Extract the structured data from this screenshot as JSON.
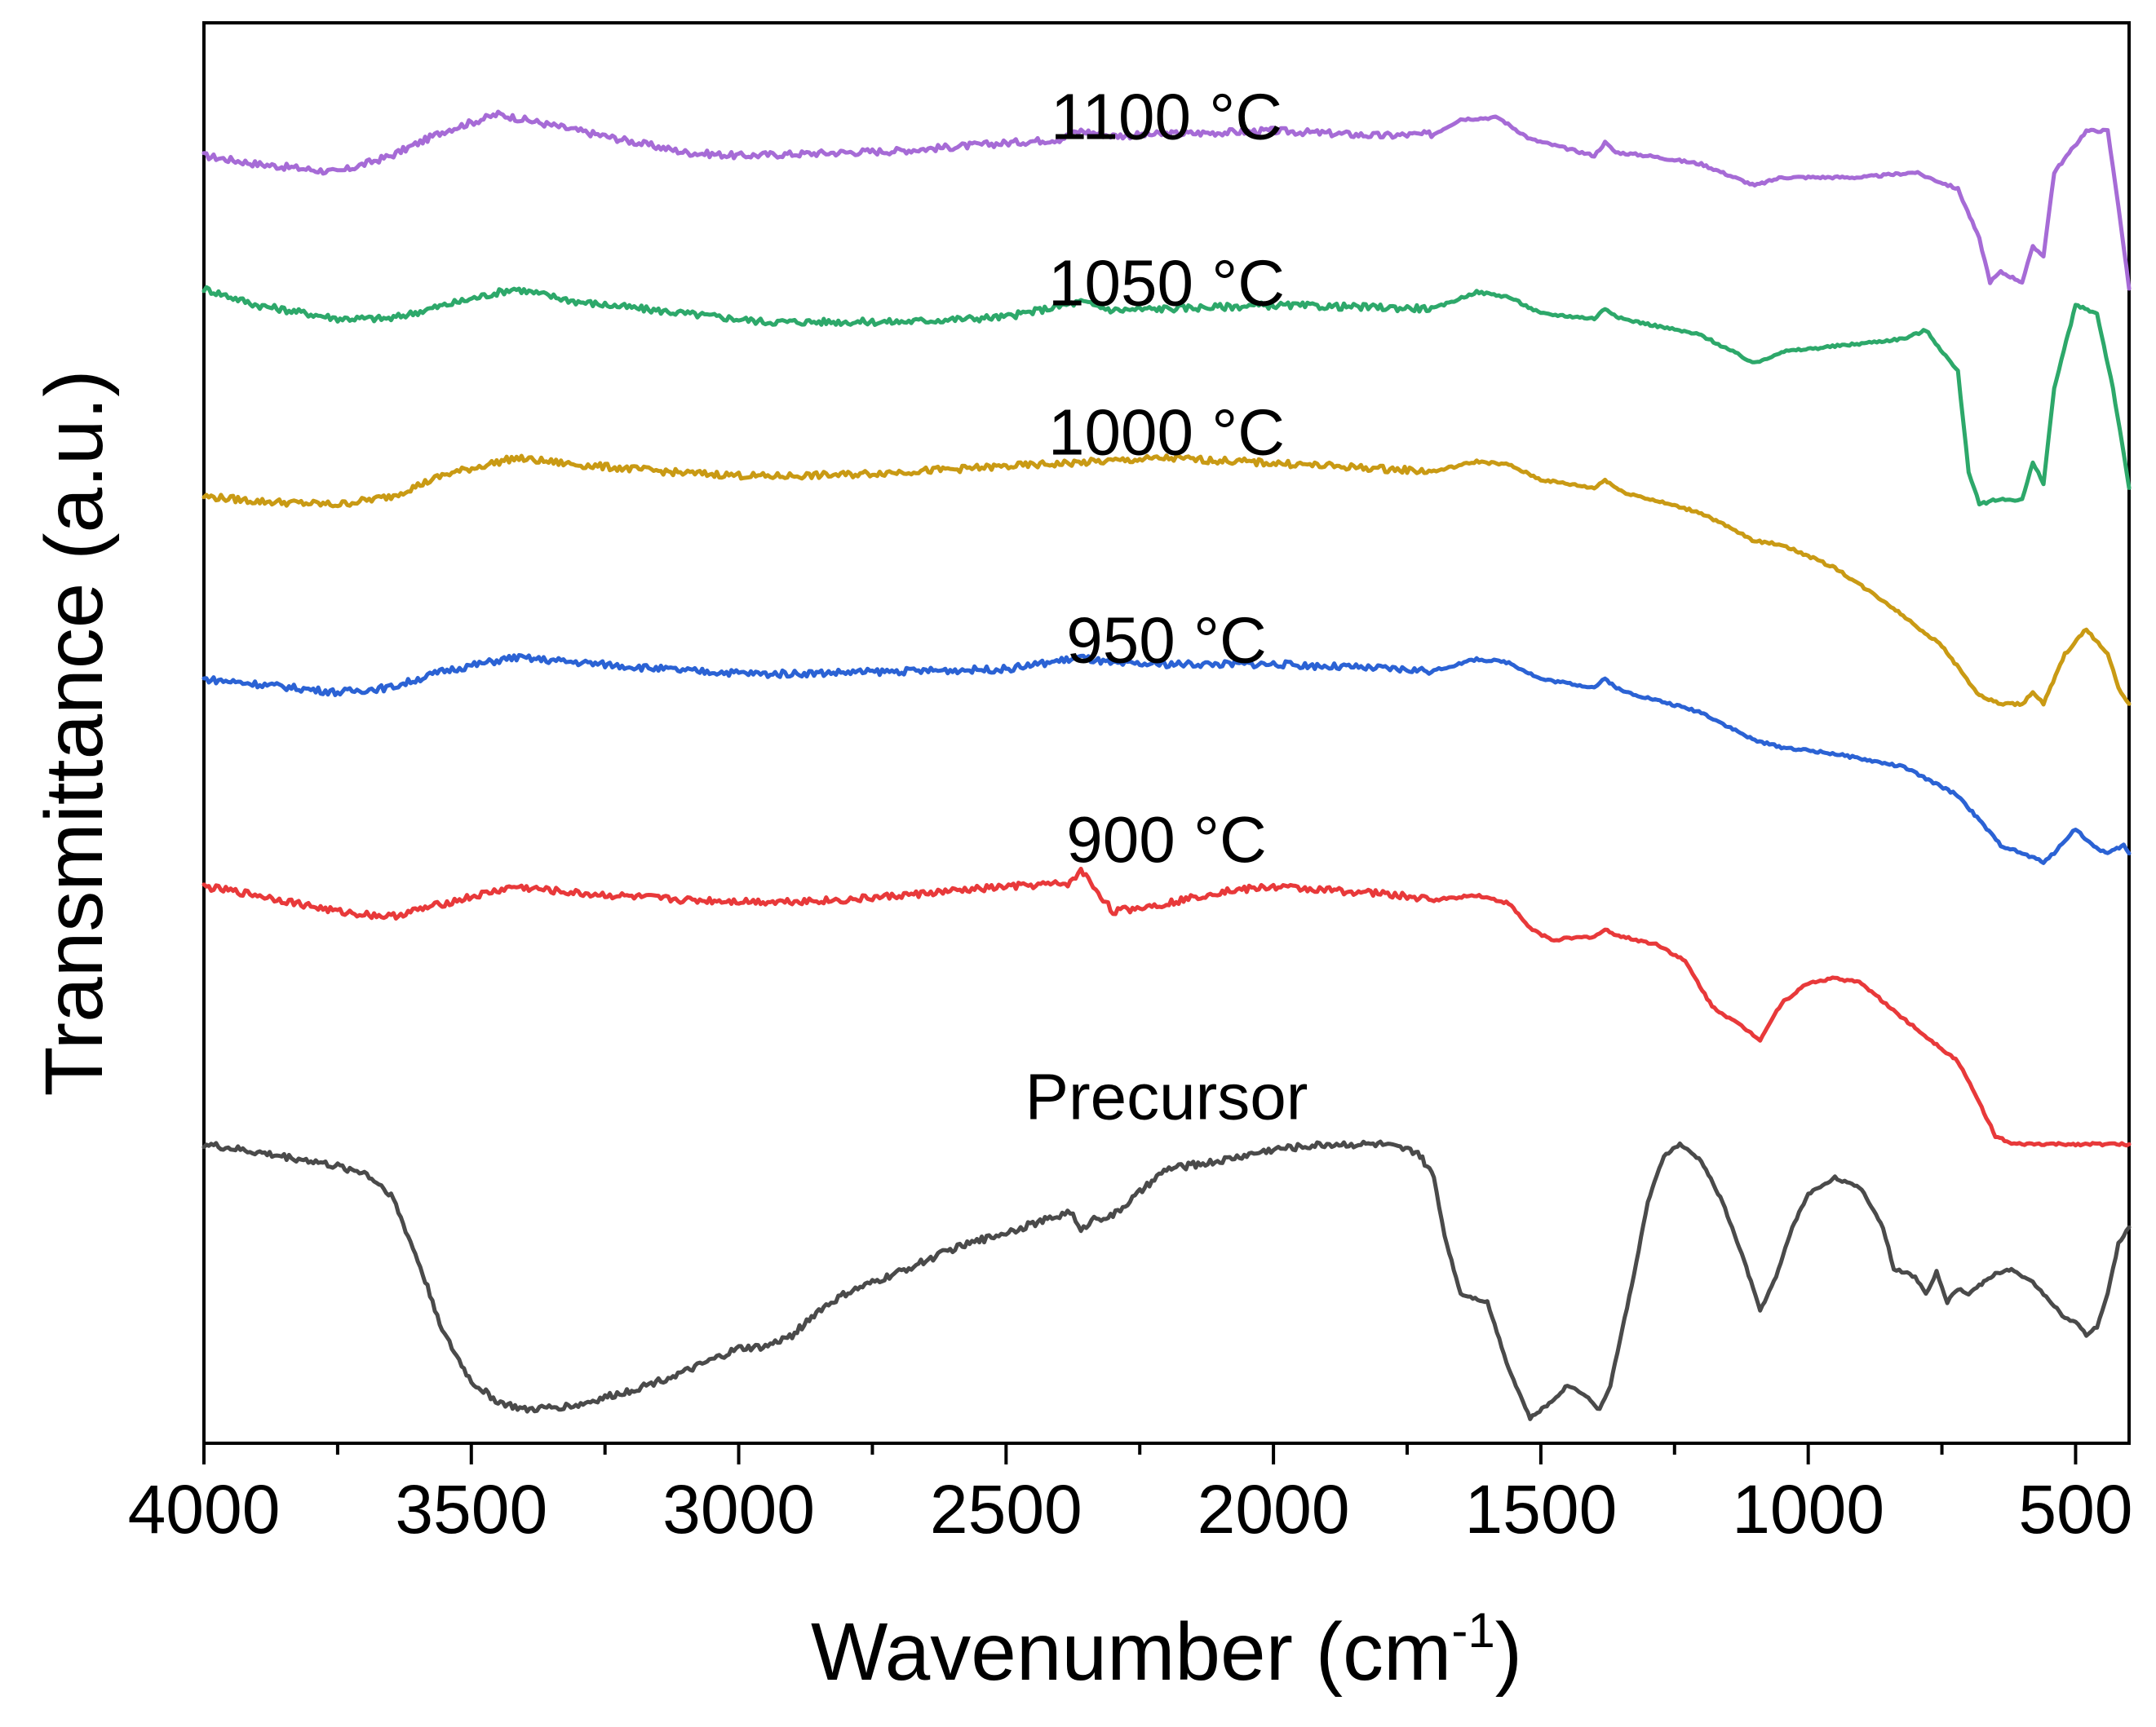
{
  "chart_data": {
    "type": "line",
    "title": "",
    "xlabel": "Wavenumber (cm",
    "xlabel_sup": "-1",
    "xlabel_close": ")",
    "ylabel": "Transmittance (a.u.)",
    "xlim": [
      4000,
      400
    ],
    "x_reversed": true,
    "y_tick_labels": false,
    "grid": false,
    "x_ticks": [
      {
        "value": 4000,
        "label": "4000"
      },
      {
        "value": 3500,
        "label": "3500"
      },
      {
        "value": 3000,
        "label": "3000"
      },
      {
        "value": 2500,
        "label": "2500"
      },
      {
        "value": 2000,
        "label": "2000"
      },
      {
        "value": 1500,
        "label": "1500"
      },
      {
        "value": 1000,
        "label": "1000"
      },
      {
        "value": 500,
        "label": "500"
      }
    ],
    "series": [
      {
        "name": "1100 °C",
        "label_num": "1100",
        "label_unit": "°C",
        "color": "#a66bd6",
        "label_x": 2200,
        "label_y": 5.0,
        "points": [
          [
            4000,
            4.9
          ],
          [
            3900,
            4.85
          ],
          [
            3750,
            4.8
          ],
          [
            3650,
            4.9
          ],
          [
            3550,
            5.05
          ],
          [
            3450,
            5.15
          ],
          [
            3300,
            5.05
          ],
          [
            3100,
            4.92
          ],
          [
            3000,
            4.9
          ],
          [
            2700,
            4.93
          ],
          [
            2400,
            5.0
          ],
          [
            2360,
            5.05
          ],
          [
            2300,
            5.02
          ],
          [
            2000,
            5.05
          ],
          [
            1800,
            5.02
          ],
          [
            1700,
            5.03
          ],
          [
            1650,
            5.12
          ],
          [
            1580,
            5.13
          ],
          [
            1520,
            5.0
          ],
          [
            1400,
            4.9
          ],
          [
            1380,
            4.98
          ],
          [
            1360,
            4.92
          ],
          [
            1300,
            4.9
          ],
          [
            1200,
            4.85
          ],
          [
            1100,
            4.72
          ],
          [
            1050,
            4.77
          ],
          [
            900,
            4.77
          ],
          [
            800,
            4.8
          ],
          [
            720,
            4.7
          ],
          [
            680,
            4.4
          ],
          [
            660,
            4.14
          ],
          [
            640,
            4.2
          ],
          [
            600,
            4.14
          ],
          [
            580,
            4.35
          ],
          [
            560,
            4.3
          ],
          [
            540,
            4.8
          ],
          [
            480,
            5.05
          ],
          [
            440,
            5.05
          ],
          [
            420,
            4.6
          ],
          [
            400,
            4.1
          ]
        ]
      },
      {
        "name": "1050 °C",
        "label_num": "1050",
        "label_unit": "°C",
        "color": "#2da86a",
        "label_x": 2200,
        "label_y": 4.0,
        "points": [
          [
            4000,
            4.1
          ],
          [
            3900,
            4.0
          ],
          [
            3750,
            3.92
          ],
          [
            3650,
            3.92
          ],
          [
            3550,
            4.0
          ],
          [
            3420,
            4.1
          ],
          [
            3300,
            4.02
          ],
          [
            3100,
            3.95
          ],
          [
            2950,
            3.9
          ],
          [
            2700,
            3.9
          ],
          [
            2500,
            3.93
          ],
          [
            2360,
            4.02
          ],
          [
            2300,
            3.97
          ],
          [
            2000,
            4.0
          ],
          [
            1700,
            3.98
          ],
          [
            1620,
            4.08
          ],
          [
            1560,
            4.05
          ],
          [
            1500,
            3.95
          ],
          [
            1400,
            3.92
          ],
          [
            1380,
            3.98
          ],
          [
            1350,
            3.92
          ],
          [
            1200,
            3.82
          ],
          [
            1100,
            3.65
          ],
          [
            1050,
            3.72
          ],
          [
            900,
            3.77
          ],
          [
            820,
            3.8
          ],
          [
            780,
            3.85
          ],
          [
            720,
            3.6
          ],
          [
            700,
            3.0
          ],
          [
            680,
            2.8
          ],
          [
            650,
            2.83
          ],
          [
            600,
            2.83
          ],
          [
            580,
            3.05
          ],
          [
            560,
            2.93
          ],
          [
            540,
            3.5
          ],
          [
            500,
            4.0
          ],
          [
            460,
            3.95
          ],
          [
            430,
            3.5
          ],
          [
            400,
            2.9
          ]
        ]
      },
      {
        "name": "1000 °C",
        "label_num": "1000",
        "label_unit": "°C",
        "color": "#c99a14",
        "label_x": 2200,
        "label_y": 3.1,
        "points": [
          [
            4000,
            2.85
          ],
          [
            3900,
            2.82
          ],
          [
            3750,
            2.8
          ],
          [
            3650,
            2.85
          ],
          [
            3550,
            2.98
          ],
          [
            3420,
            3.08
          ],
          [
            3300,
            3.04
          ],
          [
            3100,
            2.99
          ],
          [
            2950,
            2.97
          ],
          [
            2800,
            2.98
          ],
          [
            2500,
            3.03
          ],
          [
            2200,
            3.08
          ],
          [
            2000,
            3.05
          ],
          [
            1700,
            3.0
          ],
          [
            1620,
            3.06
          ],
          [
            1560,
            3.04
          ],
          [
            1500,
            2.95
          ],
          [
            1400,
            2.9
          ],
          [
            1380,
            2.95
          ],
          [
            1350,
            2.88
          ],
          [
            1200,
            2.75
          ],
          [
            1100,
            2.58
          ],
          [
            1050,
            2.56
          ],
          [
            950,
            2.42
          ],
          [
            850,
            2.2
          ],
          [
            750,
            1.95
          ],
          [
            680,
            1.65
          ],
          [
            640,
            1.6
          ],
          [
            600,
            1.6
          ],
          [
            580,
            1.67
          ],
          [
            560,
            1.6
          ],
          [
            520,
            1.9
          ],
          [
            480,
            2.05
          ],
          [
            440,
            1.9
          ],
          [
            420,
            1.7
          ],
          [
            400,
            1.6
          ]
        ]
      },
      {
        "name": "950 °C",
        "label_num": "950",
        "label_unit": "°C",
        "color": "#2b62d4",
        "label_x": 2200,
        "label_y": 1.85,
        "points": [
          [
            4000,
            1.75
          ],
          [
            3900,
            1.72
          ],
          [
            3750,
            1.67
          ],
          [
            3650,
            1.7
          ],
          [
            3550,
            1.8
          ],
          [
            3420,
            1.88
          ],
          [
            3300,
            1.85
          ],
          [
            3100,
            1.8
          ],
          [
            2950,
            1.78
          ],
          [
            2800,
            1.79
          ],
          [
            2500,
            1.81
          ],
          [
            2360,
            1.88
          ],
          [
            2300,
            1.84
          ],
          [
            2000,
            1.84
          ],
          [
            1700,
            1.8
          ],
          [
            1620,
            1.87
          ],
          [
            1560,
            1.85
          ],
          [
            1500,
            1.75
          ],
          [
            1400,
            1.7
          ],
          [
            1380,
            1.75
          ],
          [
            1350,
            1.68
          ],
          [
            1200,
            1.55
          ],
          [
            1100,
            1.38
          ],
          [
            1050,
            1.34
          ],
          [
            950,
            1.3
          ],
          [
            820,
            1.22
          ],
          [
            780,
            1.15
          ],
          [
            720,
            1.05
          ],
          [
            680,
            0.9
          ],
          [
            640,
            0.75
          ],
          [
            600,
            0.7
          ],
          [
            560,
            0.65
          ],
          [
            540,
            0.7
          ],
          [
            520,
            0.78
          ],
          [
            500,
            0.85
          ],
          [
            470,
            0.75
          ],
          [
            440,
            0.7
          ],
          [
            410,
            0.75
          ],
          [
            400,
            0.7
          ]
        ]
      },
      {
        "name": "900 °C",
        "label_num": "900",
        "label_unit": "°C",
        "color": "#e8393a",
        "label_x": 2200,
        "label_y": 0.65,
        "points": [
          [
            4000,
            0.5
          ],
          [
            3900,
            0.45
          ],
          [
            3750,
            0.35
          ],
          [
            3650,
            0.32
          ],
          [
            3550,
            0.4
          ],
          [
            3420,
            0.5
          ],
          [
            3300,
            0.46
          ],
          [
            3100,
            0.42
          ],
          [
            2950,
            0.41
          ],
          [
            2800,
            0.42
          ],
          [
            2500,
            0.5
          ],
          [
            2380,
            0.52
          ],
          [
            2360,
            0.6
          ],
          [
            2300,
            0.35
          ],
          [
            2200,
            0.4
          ],
          [
            2100,
            0.47
          ],
          [
            2000,
            0.5
          ],
          [
            1800,
            0.46
          ],
          [
            1700,
            0.42
          ],
          [
            1620,
            0.45
          ],
          [
            1560,
            0.4
          ],
          [
            1520,
            0.25
          ],
          [
            1480,
            0.18
          ],
          [
            1400,
            0.2
          ],
          [
            1380,
            0.24
          ],
          [
            1350,
            0.2
          ],
          [
            1280,
            0.15
          ],
          [
            1230,
            0.05
          ],
          [
            1180,
            -0.22
          ],
          [
            1120,
            -0.35
          ],
          [
            1090,
            -0.42
          ],
          [
            1050,
            -0.2
          ],
          [
            1000,
            -0.08
          ],
          [
            950,
            -0.05
          ],
          [
            900,
            -0.08
          ],
          [
            850,
            -0.22
          ],
          [
            800,
            -0.35
          ],
          [
            760,
            -0.45
          ],
          [
            720,
            -0.55
          ],
          [
            680,
            -0.8
          ],
          [
            650,
            -1.0
          ],
          [
            620,
            -1.05
          ],
          [
            600,
            -1.05
          ],
          [
            400,
            -1.05
          ]
        ]
      },
      {
        "name": "Precursor",
        "label_num": "Precursor",
        "label_unit": "",
        "color": "#4a4a4a",
        "label_x": 2200,
        "label_y": -0.9,
        "points": [
          [
            4000,
            -1.05
          ],
          [
            3900,
            -1.1
          ],
          [
            3800,
            -1.15
          ],
          [
            3700,
            -1.22
          ],
          [
            3650,
            -1.35
          ],
          [
            3600,
            -1.75
          ],
          [
            3550,
            -2.2
          ],
          [
            3500,
            -2.48
          ],
          [
            3450,
            -2.6
          ],
          [
            3400,
            -2.65
          ],
          [
            3300,
            -2.62
          ],
          [
            3200,
            -2.53
          ],
          [
            3100,
            -2.42
          ],
          [
            3000,
            -2.28
          ],
          [
            2950,
            -2.27
          ],
          [
            2900,
            -2.2
          ],
          [
            2850,
            -2.05
          ],
          [
            2800,
            -1.95
          ],
          [
            2700,
            -1.82
          ],
          [
            2600,
            -1.68
          ],
          [
            2500,
            -1.58
          ],
          [
            2400,
            -1.48
          ],
          [
            2380,
            -1.45
          ],
          [
            2360,
            -1.58
          ],
          [
            2340,
            -1.5
          ],
          [
            2300,
            -1.48
          ],
          [
            2200,
            -1.2
          ],
          [
            2100,
            -1.15
          ],
          [
            2000,
            -1.08
          ],
          [
            1900,
            -1.05
          ],
          [
            1800,
            -1.05
          ],
          [
            1730,
            -1.1
          ],
          [
            1700,
            -1.25
          ],
          [
            1680,
            -1.6
          ],
          [
            1650,
            -1.95
          ],
          [
            1600,
            -2.0
          ],
          [
            1560,
            -2.4
          ],
          [
            1520,
            -2.7
          ],
          [
            1480,
            -2.6
          ],
          [
            1450,
            -2.5
          ],
          [
            1420,
            -2.55
          ],
          [
            1390,
            -2.65
          ],
          [
            1370,
            -2.5
          ],
          [
            1330,
            -1.9
          ],
          [
            1300,
            -1.4
          ],
          [
            1270,
            -1.12
          ],
          [
            1240,
            -1.05
          ],
          [
            1200,
            -1.15
          ],
          [
            1160,
            -1.4
          ],
          [
            1120,
            -1.75
          ],
          [
            1090,
            -2.05
          ],
          [
            1060,
            -1.85
          ],
          [
            1030,
            -1.55
          ],
          [
            1000,
            -1.35
          ],
          [
            950,
            -1.25
          ],
          [
            900,
            -1.32
          ],
          [
            860,
            -1.55
          ],
          [
            840,
            -1.8
          ],
          [
            820,
            -1.82
          ],
          [
            800,
            -1.85
          ],
          [
            780,
            -1.95
          ],
          [
            760,
            -1.82
          ],
          [
            740,
            -2.0
          ],
          [
            720,
            -1.92
          ],
          [
            700,
            -1.95
          ],
          [
            680,
            -1.9
          ],
          [
            650,
            -1.83
          ],
          [
            620,
            -1.8
          ],
          [
            600,
            -1.85
          ],
          [
            580,
            -1.88
          ],
          [
            560,
            -1.95
          ],
          [
            540,
            -2.02
          ],
          [
            520,
            -2.1
          ],
          [
            500,
            -2.12
          ],
          [
            480,
            -2.2
          ],
          [
            460,
            -2.15
          ],
          [
            440,
            -1.95
          ],
          [
            420,
            -1.65
          ],
          [
            400,
            -1.55
          ]
        ]
      }
    ]
  }
}
